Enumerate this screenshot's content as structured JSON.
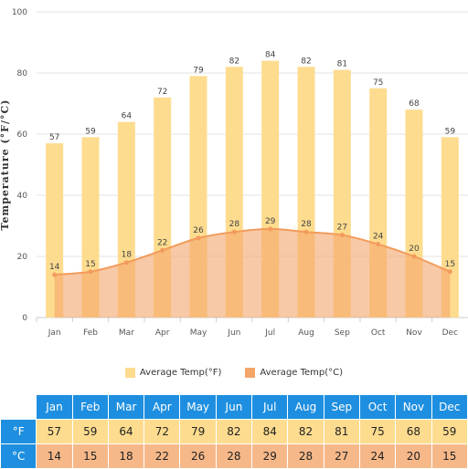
{
  "chart_data": {
    "type": "bar",
    "categories": [
      "Jan",
      "Feb",
      "Mar",
      "Apr",
      "May",
      "Jun",
      "Jul",
      "Aug",
      "Sep",
      "Oct",
      "Nov",
      "Dec"
    ],
    "ylabel": "Temperature (°F/°C)",
    "ylim": [
      0,
      100
    ],
    "yticks": [
      0,
      20,
      40,
      60,
      80,
      100
    ],
    "grid": true,
    "legend_placement": "bottom",
    "series": [
      {
        "name": "Average Temp(°F)",
        "type": "bar",
        "color": "#fedc8f",
        "values": [
          57,
          59,
          64,
          72,
          79,
          82,
          84,
          82,
          81,
          75,
          68,
          59
        ]
      },
      {
        "name": "Average Temp(°C)",
        "type": "area",
        "color": "#f3a56a",
        "values": [
          14,
          15,
          18,
          22,
          26,
          28,
          29,
          28,
          27,
          24,
          20,
          15
        ]
      }
    ]
  },
  "table": {
    "months": [
      "Jan",
      "Feb",
      "Mar",
      "Apr",
      "May",
      "Jun",
      "Jul",
      "Aug",
      "Sep",
      "Oct",
      "Nov",
      "Dec"
    ],
    "f_label": "°F",
    "c_label": "°C",
    "f_values": [
      "57",
      "59",
      "64",
      "72",
      "79",
      "82",
      "84",
      "82",
      "81",
      "75",
      "68",
      "59"
    ],
    "c_values": [
      "14",
      "15",
      "18",
      "22",
      "26",
      "28",
      "29",
      "28",
      "27",
      "24",
      "20",
      "15"
    ]
  }
}
